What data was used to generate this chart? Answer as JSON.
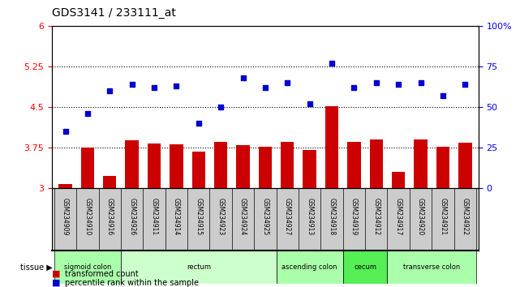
{
  "title": "GDS3141 / 233111_at",
  "samples": [
    "GSM234909",
    "GSM234910",
    "GSM234916",
    "GSM234926",
    "GSM234911",
    "GSM234914",
    "GSM234915",
    "GSM234923",
    "GSM234924",
    "GSM234925",
    "GSM234927",
    "GSM234913",
    "GSM234918",
    "GSM234919",
    "GSM234912",
    "GSM234917",
    "GSM234920",
    "GSM234921",
    "GSM234922"
  ],
  "bar_values": [
    3.08,
    3.75,
    3.22,
    3.88,
    3.82,
    3.81,
    3.68,
    3.85,
    3.79,
    3.77,
    3.85,
    3.7,
    4.52,
    3.86,
    3.9,
    3.3,
    3.9,
    3.77,
    3.84
  ],
  "dot_values": [
    35,
    46,
    60,
    64,
    62,
    63,
    40,
    50,
    68,
    62,
    65,
    52,
    77,
    62,
    65,
    64,
    65,
    57,
    64
  ],
  "ylim_left": [
    3,
    6
  ],
  "ylim_right": [
    0,
    100
  ],
  "yticks_left": [
    3,
    3.75,
    4.5,
    5.25,
    6
  ],
  "yticks_right": [
    0,
    25,
    50,
    75,
    100
  ],
  "ytick_labels_left": [
    "3",
    "3.75",
    "4.5",
    "5.25",
    "6"
  ],
  "ytick_labels_right": [
    "0",
    "25",
    "50",
    "75",
    "100%"
  ],
  "hlines": [
    3.75,
    4.5,
    5.25
  ],
  "bar_color": "#cc0000",
  "dot_color": "#0000cc",
  "tissue_groups": [
    {
      "label": "sigmoid colon",
      "start": 0,
      "end": 3,
      "color": "#aaffaa"
    },
    {
      "label": "rectum",
      "start": 3,
      "end": 10,
      "color": "#ccffcc"
    },
    {
      "label": "ascending colon",
      "start": 10,
      "end": 13,
      "color": "#aaffaa"
    },
    {
      "label": "cecum",
      "start": 13,
      "end": 15,
      "color": "#55ee55"
    },
    {
      "label": "transverse colon",
      "start": 15,
      "end": 19,
      "color": "#aaffaa"
    }
  ],
  "tissue_label": "tissue",
  "legend_bar_label": "transformed count",
  "legend_dot_label": "percentile rank within the sample",
  "xlabel_color": "#333333",
  "background_color": "#ffffff",
  "plot_bg_color": "#ffffff",
  "xticklabel_bg": "#dddddd"
}
